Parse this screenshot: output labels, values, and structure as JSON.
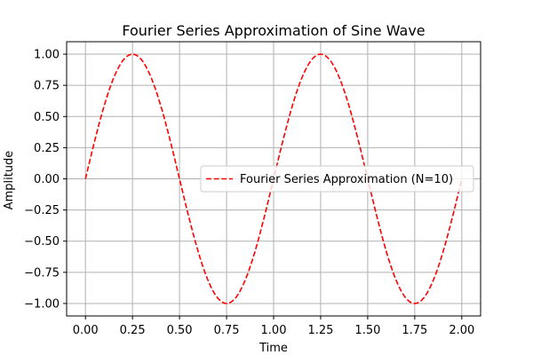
{
  "chart_data": {
    "type": "line",
    "title": "Fourier Series Approximation of Sine Wave",
    "xlabel": "Time",
    "ylabel": "Amplitude",
    "xlim": [
      -0.1,
      2.1
    ],
    "ylim": [
      -1.1,
      1.1
    ],
    "xticks": [
      0.0,
      0.25,
      0.5,
      0.75,
      1.0,
      1.25,
      1.5,
      1.75,
      2.0
    ],
    "xtick_labels": [
      "0.00",
      "0.25",
      "0.50",
      "0.75",
      "1.00",
      "1.25",
      "1.50",
      "1.75",
      "2.00"
    ],
    "yticks": [
      -1.0,
      -0.75,
      -0.5,
      -0.25,
      0.0,
      0.25,
      0.5,
      0.75,
      1.0
    ],
    "ytick_labels": [
      "−1.00",
      "−0.75",
      "−0.50",
      "−0.25",
      "0.00",
      "0.25",
      "0.50",
      "0.75",
      "1.00"
    ],
    "grid": true,
    "legend_position": "center-right",
    "series": [
      {
        "name": "Fourier Series Approximation (N=10)",
        "color": "#ff0000",
        "line_style": "dashed",
        "x": [
          0.0,
          0.05,
          0.1,
          0.15,
          0.2,
          0.25,
          0.3,
          0.35,
          0.4,
          0.45,
          0.5,
          0.55,
          0.6,
          0.65,
          0.7,
          0.75,
          0.8,
          0.85,
          0.9,
          0.95,
          1.0,
          1.05,
          1.1,
          1.15,
          1.2,
          1.25,
          1.3,
          1.35,
          1.4,
          1.45,
          1.5,
          1.55,
          1.6,
          1.65,
          1.7,
          1.75,
          1.8,
          1.85,
          1.9,
          1.95,
          2.0
        ],
        "y": [
          0.0,
          0.309,
          0.588,
          0.809,
          0.951,
          1.0,
          0.951,
          0.809,
          0.588,
          0.309,
          0.0,
          -0.309,
          -0.588,
          -0.809,
          -0.951,
          -1.0,
          -0.951,
          -0.809,
          -0.588,
          -0.309,
          0.0,
          0.309,
          0.588,
          0.809,
          0.951,
          1.0,
          0.951,
          0.809,
          0.588,
          0.309,
          0.0,
          -0.309,
          -0.588,
          -0.809,
          -0.951,
          -1.0,
          -0.951,
          -0.809,
          -0.588,
          -0.309,
          0.0
        ]
      }
    ]
  }
}
